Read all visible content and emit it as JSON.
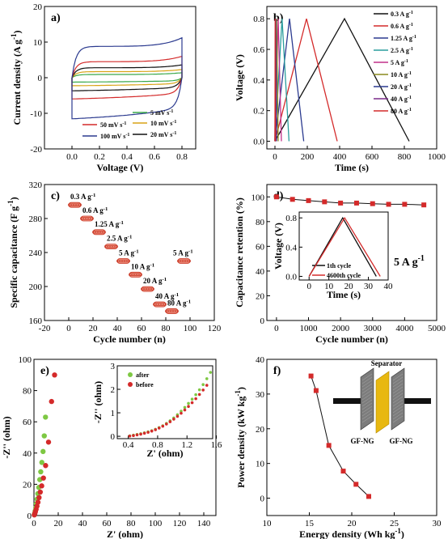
{
  "colors": {
    "red": "#d42a2a",
    "blue": "#2b3a8f",
    "green": "#3aa84a",
    "orange": "#d9a316",
    "black": "#111111",
    "teal": "#2a9d9d",
    "magenta": "#c2308a",
    "olive": "#8a8a1e",
    "purple": "#7a2a8a",
    "lime": "#7ec843",
    "redbar": "#f08a7a"
  },
  "chart_data": [
    {
      "panel": "a)",
      "type": "line",
      "xlabel": "Voltage (V)",
      "ylabel": "Current density (A g",
      "ylabel_sup": "-1",
      "ylabel_tail": ")",
      "xlim": [
        -0.2,
        0.9
      ],
      "ylim": [
        -20,
        20
      ],
      "xticks": [
        0.0,
        0.2,
        0.4,
        0.6,
        0.8
      ],
      "yticks": [
        -20,
        -10,
        0,
        10,
        20
      ],
      "series": [
        {
          "name": "5 mV s",
          "sup": "-1",
          "color": "#3aa84a",
          "amp": 0.9,
          "end": 1.4
        },
        {
          "name": "10 mV s",
          "sup": "-1",
          "color": "#d9a316",
          "amp": 1.7,
          "end": 2.3
        },
        {
          "name": "20 mV s",
          "sup": "-1",
          "color": "#111111",
          "amp": 2.8,
          "end": 3.6
        },
        {
          "name": "50 mV s",
          "sup": "-1",
          "color": "#d42a2a",
          "amp": 4.5,
          "end": 6.0
        },
        {
          "name": "100 mV s",
          "sup": "-1",
          "color": "#2b3a8f",
          "amp": 8.8,
          "end": 11.2
        }
      ]
    },
    {
      "panel": "b)",
      "type": "line",
      "xlabel": "Time (s)",
      "ylabel": "Voltage (V)",
      "xlim": [
        -50,
        1000
      ],
      "ylim": [
        -0.05,
        0.88
      ],
      "xticks": [
        0,
        200,
        400,
        600,
        800,
        1000
      ],
      "yticks": [
        0.0,
        0.2,
        0.4,
        0.6,
        0.8
      ],
      "series": [
        {
          "name": "0.3 A g",
          "sup": "-1",
          "color": "#111111",
          "peak": 430,
          "end": 830
        },
        {
          "name": "0.6 A g",
          "sup": "-1",
          "color": "#d42a2a",
          "peak": 195,
          "end": 385
        },
        {
          "name": "1.25 A g",
          "sup": "-1",
          "color": "#2b3a8f",
          "peak": 90,
          "end": 178
        },
        {
          "name": "2.5 A g",
          "sup": "-1",
          "color": "#2a9d9d",
          "peak": 44,
          "end": 87
        },
        {
          "name": "5 A g",
          "sup": "-1",
          "color": "#c2308a",
          "peak": 20,
          "end": 40
        },
        {
          "name": "10 A g",
          "sup": "-1",
          "color": "#8a8a1e",
          "peak": 10,
          "end": 20
        },
        {
          "name": "20 A g",
          "sup": "-1",
          "color": "#2b3a8f",
          "peak": 5,
          "end": 10
        },
        {
          "name": "40 A g",
          "sup": "-1",
          "color": "#7a2a8a",
          "peak": 3,
          "end": 5
        },
        {
          "name": "80 A g",
          "sup": "-1",
          "color": "#d42a2a",
          "peak": 1.5,
          "end": 3
        }
      ]
    },
    {
      "panel": "c)",
      "type": "scatter",
      "xlabel": "Cycle number (n)",
      "ylabel": "Specific capacitance (F g",
      "ylabel_sup": "-1",
      "ylabel_tail": ")",
      "xlim": [
        -20,
        120
      ],
      "ylim": [
        160,
        320
      ],
      "xticks": [
        -20,
        0,
        20,
        40,
        60,
        80,
        100,
        120
      ],
      "yticks": [
        160,
        200,
        240,
        280,
        320
      ],
      "groups": [
        {
          "label": "0.3 A g",
          "sup": "-1",
          "x0": 0,
          "y": 296
        },
        {
          "label": "0.6 A g",
          "sup": "-1",
          "x0": 10,
          "y": 280
        },
        {
          "label": "1.25 A g",
          "sup": "-1",
          "x0": 20,
          "y": 264
        },
        {
          "label": "2.5 A g",
          "sup": "-1",
          "x0": 30,
          "y": 247
        },
        {
          "label": "5 A g",
          "sup": "-1",
          "x0": 40,
          "y": 230
        },
        {
          "label": "10 A g",
          "sup": "-1",
          "x0": 50,
          "y": 214
        },
        {
          "label": "20 A g",
          "sup": "-1",
          "x0": 60,
          "y": 197
        },
        {
          "label": "40 A g",
          "sup": "-1",
          "x0": 70,
          "y": 179
        },
        {
          "label": "80 A g",
          "sup": "-1",
          "x0": 80,
          "y": 171
        },
        {
          "label": "5 A g",
          "sup": "-1",
          "x0": 90,
          "y": 230
        }
      ]
    },
    {
      "panel": "d)",
      "type": "scatter",
      "xlabel": "Cycle number (n)",
      "ylabel": "Capacitance retention (%)",
      "xlim": [
        -300,
        5000
      ],
      "ylim": [
        0,
        110
      ],
      "xticks": [
        0,
        1000,
        2000,
        3000,
        4000,
        5000
      ],
      "yticks": [
        0,
        20,
        40,
        60,
        80,
        100
      ],
      "x": [
        0,
        500,
        1000,
        1500,
        2000,
        2500,
        3000,
        3500,
        4000,
        4600
      ],
      "y": [
        100,
        98,
        97,
        96,
        95,
        95,
        94.5,
        94,
        94,
        93.5
      ],
      "annotation": "5 A g",
      "annotation_sup": "-1",
      "inset": {
        "xlabel": "Time (s)",
        "ylabel": "Voltage (V)",
        "xlim": [
          -5,
          40
        ],
        "ylim": [
          -0.05,
          0.88
        ],
        "xticks": [
          0,
          10,
          20,
          30,
          40
        ],
        "yticks": [
          0.0,
          0.4,
          0.8
        ],
        "series": [
          {
            "name": "1th cycle",
            "color": "#111111",
            "start": 0,
            "peak": 17,
            "end": 34
          },
          {
            "name": "4600th cycle",
            "color": "#d42a2a",
            "start": 0,
            "peak": 18,
            "end": 36
          }
        ]
      }
    },
    {
      "panel": "e)",
      "type": "scatter",
      "xlabel": "Z' (ohm)",
      "ylabel": "-Z'' (ohm)",
      "xlim": [
        0,
        150
      ],
      "ylim": [
        0,
        100
      ],
      "xticks": [
        0,
        20,
        40,
        60,
        80,
        100,
        120,
        140
      ],
      "yticks": [
        0,
        20,
        40,
        60,
        80,
        100
      ],
      "series": [
        {
          "name": "after",
          "color": "#7ec843",
          "x": [
            0.3,
            0.6,
            1.0,
            1.5,
            2.0,
            2.6,
            3.2,
            4.0,
            4.8,
            5.6,
            6.5,
            7.5,
            8.5,
            9.5
          ],
          "y": [
            0.5,
            1.5,
            3,
            5,
            7.5,
            10.5,
            14,
            18,
            23,
            28,
            34,
            41,
            51,
            63
          ]
        },
        {
          "name": "before",
          "color": "#d42a2a",
          "x": [
            0.3,
            0.7,
            1.2,
            1.8,
            2.5,
            3.3,
            4.2,
            5.2,
            6.4,
            7.8,
            9.6,
            12.0,
            14.5,
            17.0
          ],
          "y": [
            0.4,
            1.2,
            2.5,
            4,
            6,
            8.5,
            11.5,
            15,
            19,
            24,
            32,
            47,
            73,
            90
          ]
        }
      ],
      "inset": {
        "xlabel": "Z' (ohm)",
        "ylabel": "-Z'' (ohm)",
        "xlim": [
          0.25,
          1.55
        ],
        "ylim": [
          -0.1,
          3.0
        ],
        "xticks": [
          0.4,
          0.8,
          1.2,
          1.6
        ],
        "yticks": [
          0,
          1,
          2,
          3
        ],
        "series": [
          {
            "name": "after",
            "color": "#7ec843",
            "x": [
              0.42,
              0.47,
              0.52,
              0.57,
              0.62,
              0.67,
              0.72,
              0.77,
              0.82,
              0.87,
              0.92,
              0.97,
              1.02,
              1.07,
              1.12,
              1.17,
              1.22,
              1.27,
              1.32,
              1.37,
              1.42,
              1.47,
              1.52
            ],
            "y": [
              0.02,
              0.05,
              0.08,
              0.11,
              0.15,
              0.19,
              0.24,
              0.3,
              0.37,
              0.45,
              0.55,
              0.66,
              0.78,
              0.92,
              1.07,
              1.23,
              1.4,
              1.58,
              1.77,
              1.98,
              2.2,
              2.45,
              2.72
            ]
          },
          {
            "name": "before",
            "color": "#d42a2a",
            "x": [
              0.42,
              0.47,
              0.52,
              0.57,
              0.62,
              0.67,
              0.72,
              0.77,
              0.82,
              0.87,
              0.92,
              0.97,
              1.02,
              1.07,
              1.12,
              1.17,
              1.22,
              1.27,
              1.32,
              1.37,
              1.42,
              1.47
            ],
            "y": [
              0.01,
              0.03,
              0.06,
              0.09,
              0.13,
              0.17,
              0.22,
              0.28,
              0.35,
              0.43,
              0.52,
              0.62,
              0.73,
              0.85,
              0.98,
              1.12,
              1.27,
              1.43,
              1.6,
              1.78,
              1.97,
              2.17
            ]
          }
        ]
      }
    },
    {
      "panel": "f)",
      "type": "line",
      "xlabel": "Energy density (Wh kg",
      "xlabel_sup": "-1",
      "xlabel_tail": ")",
      "ylabel": "Power density (kW kg",
      "ylabel_sup": "-1",
      "ylabel_tail": ")",
      "xlim": [
        10,
        30
      ],
      "ylim": [
        -5,
        40
      ],
      "xticks": [
        10,
        15,
        20,
        25,
        30
      ],
      "yticks": [
        0,
        10,
        20,
        30,
        40
      ],
      "x": [
        15.2,
        15.8,
        17.3,
        19.0,
        20.5,
        22.0
      ],
      "y": [
        35.2,
        31.0,
        15.2,
        7.8,
        4.0,
        0.5
      ],
      "diagram": {
        "separator": "Separator",
        "left": "GF-NG",
        "right": "GF-NG"
      }
    }
  ]
}
